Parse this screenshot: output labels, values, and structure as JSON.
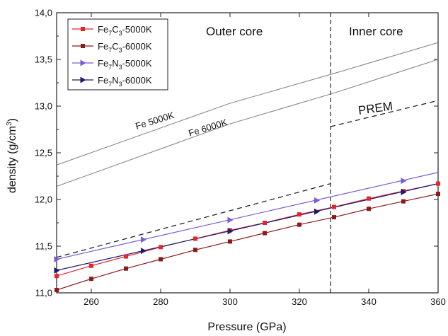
{
  "chart_data": {
    "type": "line",
    "title": "",
    "xlabel": "Pressure (GPa)",
    "ylabel_parts": {
      "main": "density (g/cm",
      "sup": "3",
      "close": ")"
    },
    "xlim": [
      250,
      360
    ],
    "ylim": [
      11.0,
      14.0
    ],
    "x_ticks": [
      260,
      280,
      300,
      320,
      340,
      360
    ],
    "y_ticks": [
      "11,0",
      "11,5",
      "12,0",
      "12,5",
      "13,0",
      "13,5",
      "14,0"
    ],
    "y_tick_values": [
      11.0,
      11.5,
      12.0,
      12.5,
      13.0,
      13.5,
      14.0
    ],
    "grid": false,
    "legend_position": "top-left",
    "boundary_x": 329,
    "regions": {
      "outer": "Outer core",
      "inner": "Inner core"
    },
    "series": [
      {
        "name_parts": [
          "Fe",
          "7",
          "C",
          "3",
          "-5000K"
        ],
        "color": "#e8232b",
        "marker": "square",
        "x": [
          250,
          260,
          270,
          280,
          290,
          300,
          310,
          320,
          330,
          340,
          350,
          360
        ],
        "y": [
          11.18,
          11.29,
          11.39,
          11.49,
          11.58,
          11.67,
          11.75,
          11.84,
          11.92,
          12.01,
          12.09,
          12.17
        ]
      },
      {
        "name_parts": [
          "Fe",
          "7",
          "C",
          "3",
          "-6000K"
        ],
        "color": "#8b1a1a",
        "marker": "square",
        "x": [
          250,
          260,
          270,
          280,
          290,
          300,
          310,
          320,
          330,
          340,
          350,
          360
        ],
        "y": [
          11.03,
          11.15,
          11.26,
          11.36,
          11.46,
          11.55,
          11.64,
          11.73,
          11.81,
          11.9,
          11.98,
          12.06
        ]
      },
      {
        "name_parts": [
          "Fe",
          "7",
          "N",
          "3",
          "-5000K"
        ],
        "color": "#7b5bd6",
        "marker": "triangle-right",
        "x": [
          250,
          275,
          300,
          325,
          350
        ],
        "y": [
          11.36,
          11.57,
          11.78,
          11.99,
          12.2
        ],
        "line_x": [
          250,
          360
        ],
        "line_y": [
          11.36,
          12.29
        ]
      },
      {
        "name_parts": [
          "Fe",
          "7",
          "N",
          "3",
          "-6000K"
        ],
        "color": "#1a1a6e",
        "marker": "triangle-right",
        "x": [
          250,
          275,
          300,
          325,
          350
        ],
        "y": [
          11.24,
          11.45,
          11.66,
          11.87,
          12.08
        ],
        "line_x": [
          250,
          360
        ],
        "line_y": [
          11.24,
          12.17
        ]
      }
    ],
    "reference_lines": [
      {
        "label": "Fe 5000K",
        "color": "#8a8a8a",
        "x": [
          250,
          300,
          330,
          360
        ],
        "y": [
          12.37,
          13.03,
          13.35,
          13.68
        ]
      },
      {
        "label": "Fe 6000K",
        "color": "#8a8a8a",
        "x": [
          250,
          300,
          330,
          360
        ],
        "y": [
          12.14,
          12.81,
          13.14,
          13.5
        ]
      }
    ],
    "prem": {
      "label": "PREM",
      "outer_x": [
        250,
        329
      ],
      "outer_y": [
        11.38,
        12.17
      ],
      "inner_x": [
        329,
        360
      ],
      "inner_y": [
        12.78,
        13.06
      ]
    }
  }
}
